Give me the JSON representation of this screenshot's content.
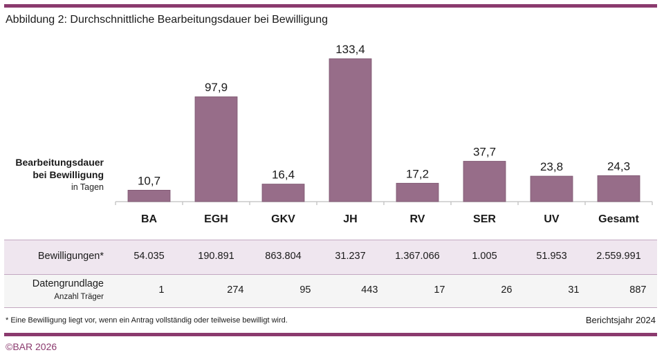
{
  "colors": {
    "brand": "#8b3a6e",
    "bar": "#976d89",
    "row_highlight": "#efe6ef",
    "row_plain": "#f5f5f5"
  },
  "title": "Abbildung 2: Durchschnittliche Bearbeitungsdauer bei Bewilligung",
  "y_label": {
    "line1": "Bearbeitungsdauer",
    "line2": "bei Bewilligung",
    "unit": "in Tagen"
  },
  "chart_data": {
    "type": "bar",
    "title": "Abbildung 2: Durchschnittliche Bearbeitungsdauer bei Bewilligung",
    "xlabel": "",
    "ylabel": "Bearbeitungsdauer bei Bewilligung in Tagen",
    "categories": [
      "BA",
      "EGH",
      "GKV",
      "JH",
      "RV",
      "SER",
      "UV",
      "Gesamt"
    ],
    "values": [
      10.7,
      97.9,
      16.4,
      133.4,
      17.2,
      37.7,
      23.8,
      24.3
    ],
    "value_labels": [
      "10,7",
      "97,9",
      "16,4",
      "133,4",
      "17,2",
      "37,7",
      "23,8",
      "24,3"
    ],
    "ylim": [
      0,
      133.4
    ],
    "grid": false
  },
  "table": {
    "rows": [
      {
        "label": "Bewilligungen*",
        "sublabel": "",
        "values": [
          "54.035",
          "190.891",
          "863.804",
          "31.237",
          "1.367.066",
          "1.005",
          "51.953",
          "2.559.991"
        ]
      },
      {
        "label": "Datengrundlage",
        "sublabel": "Anzahl Träger",
        "values": [
          "1",
          "274",
          "95",
          "443",
          "17",
          "26",
          "31",
          "887"
        ]
      }
    ]
  },
  "footnote": "* Eine Bewilligung liegt vor, wenn ein Antrag vollständig oder teilweise bewilligt wird.",
  "report_year": "Berichtsjahr 2024",
  "copyright": "©BAR 2026"
}
